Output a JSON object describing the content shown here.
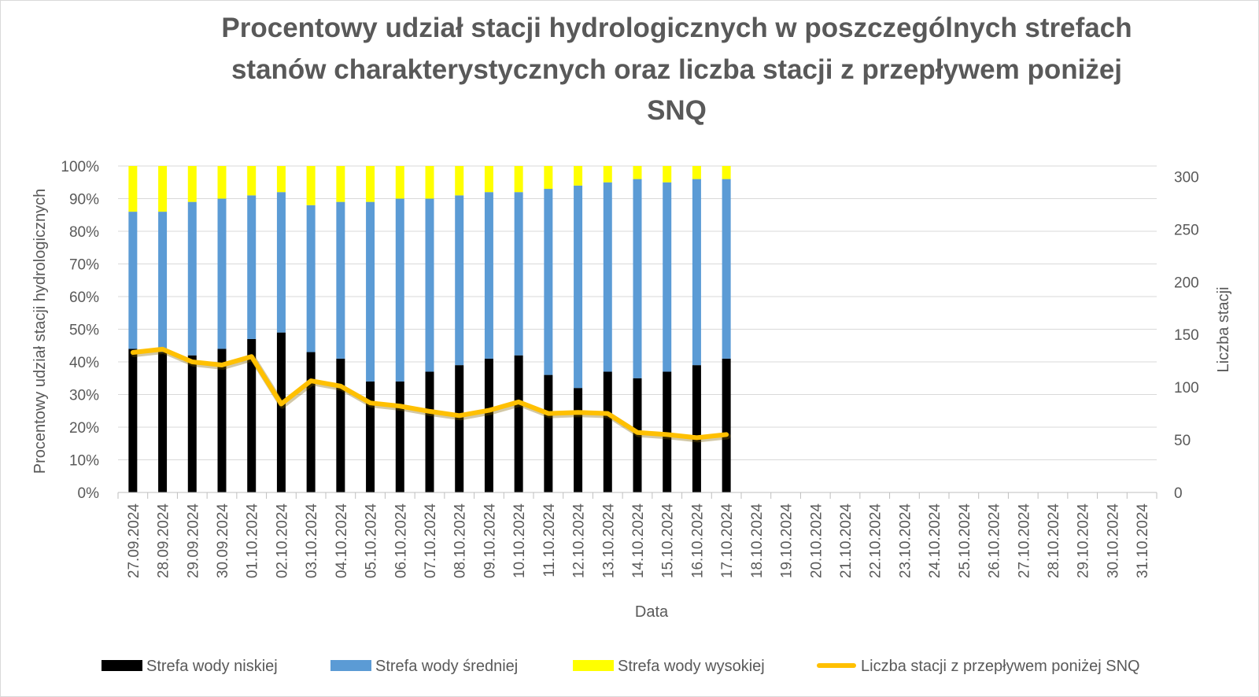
{
  "chart_data": {
    "type": "bar",
    "stacked": true,
    "title_lines": [
      "Procentowy udział stacji hydrologicznych w poszczególnych strefach",
      "stanów charakterystycznych oraz liczba stacji z przepływem poniżej",
      "SNQ"
    ],
    "xlabel": "Data",
    "ylabel": "Procentowy udział stacji hydrologicznych",
    "y2label": "Liczba stacji",
    "ylim": [
      0,
      100
    ],
    "y2lim": [
      0,
      310
    ],
    "yticks": [
      "0%",
      "10%",
      "20%",
      "30%",
      "40%",
      "50%",
      "60%",
      "70%",
      "80%",
      "90%",
      "100%"
    ],
    "y2ticks": [
      "0",
      "50",
      "100",
      "150",
      "200",
      "250",
      "300"
    ],
    "grid": true,
    "legend_position": "bottom",
    "categories": [
      "27.09.2024",
      "28.09.2024",
      "29.09.2024",
      "30.09.2024",
      "01.10.2024",
      "02.10.2024",
      "03.10.2024",
      "04.10.2024",
      "05.10.2024",
      "06.10.2024",
      "07.10.2024",
      "08.10.2024",
      "09.10.2024",
      "10.10.2024",
      "11.10.2024",
      "12.10.2024",
      "13.10.2024",
      "14.10.2024",
      "15.10.2024",
      "16.10.2024",
      "17.10.2024",
      "18.10.2024",
      "19.10.2024",
      "20.10.2024",
      "21.10.2024",
      "22.10.2024",
      "23.10.2024",
      "24.10.2024",
      "25.10.2024",
      "26.10.2024",
      "27.10.2024",
      "28.10.2024",
      "29.10.2024",
      "30.10.2024",
      "31.10.2024"
    ],
    "series": [
      {
        "name": "Strefa wody niskiej",
        "kind": "bar",
        "axis": "left",
        "color": "#000000",
        "values": [
          44,
          43,
          42,
          44,
          47,
          49,
          43,
          41,
          34,
          34,
          37,
          39,
          41,
          42,
          36,
          32,
          37,
          35,
          37,
          39,
          41,
          null,
          null,
          null,
          null,
          null,
          null,
          null,
          null,
          null,
          null,
          null,
          null,
          null,
          null
        ]
      },
      {
        "name": "Strefa wody średniej",
        "kind": "bar",
        "axis": "left",
        "color": "#5b9bd5",
        "values": [
          42,
          43,
          47,
          46,
          44,
          43,
          45,
          48,
          55,
          56,
          53,
          52,
          51,
          50,
          57,
          62,
          58,
          61,
          58,
          57,
          55,
          null,
          null,
          null,
          null,
          null,
          null,
          null,
          null,
          null,
          null,
          null,
          null,
          null,
          null
        ]
      },
      {
        "name": "Strefa wody wysokiej",
        "kind": "bar",
        "axis": "left",
        "color": "#ffff00",
        "values": [
          14,
          14,
          11,
          10,
          9,
          8,
          12,
          11,
          11,
          10,
          10,
          9,
          8,
          8,
          7,
          6,
          5,
          4,
          5,
          4,
          4,
          null,
          null,
          null,
          null,
          null,
          null,
          null,
          null,
          null,
          null,
          null,
          null,
          null,
          null
        ]
      },
      {
        "name": "Liczba stacji z przepływem poniżej SNQ",
        "kind": "line",
        "axis": "right",
        "color": "#ffc000",
        "values": [
          133,
          136,
          124,
          121,
          129,
          84,
          106,
          101,
          85,
          82,
          77,
          73,
          78,
          86,
          75,
          76,
          75,
          57,
          55,
          52,
          55,
          null,
          null,
          null,
          null,
          null,
          null,
          null,
          null,
          null,
          null,
          null,
          null,
          null,
          null
        ]
      }
    ]
  }
}
